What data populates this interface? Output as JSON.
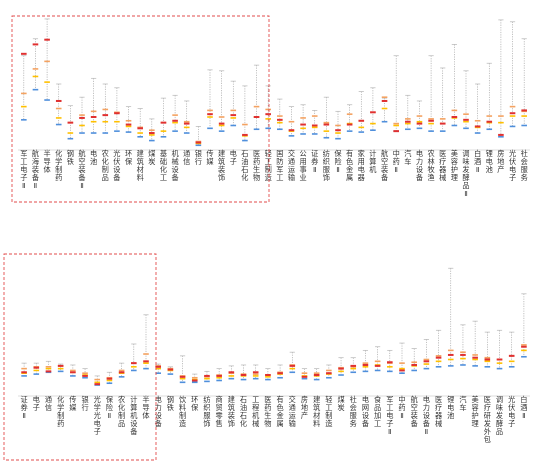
{
  "colors": {
    "p25": "#4f8fdc",
    "median": "#ffc000",
    "p75": "#f4a261",
    "current": "#e03030",
    "range": "#9a9a9a",
    "frame": "#e24b4b"
  },
  "chart_data": [
    {
      "type": "range-marker",
      "title": "",
      "legend": [],
      "y_tick_labels": [],
      "ylim": [
        0,
        140
      ],
      "categories": [
        "军工电子Ⅱ",
        "航海装备Ⅱ",
        "半导体",
        "化学制药",
        "钢铁",
        "航空装备Ⅱ",
        "电池",
        "农化制品",
        "光伏设备",
        "环保",
        "建筑材料",
        "煤炭",
        "基础化工",
        "机械设备",
        "通信",
        "银行",
        "传媒",
        "建筑装饰",
        "电子",
        "石油石化",
        "医药生物",
        "轻工制造",
        "国防军工",
        "交通运输",
        "公用事业",
        "证券Ⅱ",
        "纺织服饰",
        "保险Ⅱ",
        "有色金属",
        "家用电器",
        "计算机",
        "航空装备",
        "中药Ⅱ",
        "汽车",
        "电力设备",
        "农林牧渔",
        "医疗器械",
        "美容护理",
        "调味发酵品Ⅱ",
        "白酒Ⅱ",
        "锂电池",
        "房地产",
        "光伏电子",
        "社会服务"
      ],
      "series": [
        {
          "name": "",
          "key": "max",
          "values": [
            100,
            118,
            139,
            70,
            47,
            56,
            76,
            70,
            66,
            46,
            44,
            33,
            55,
            58,
            52,
            25,
            85,
            84,
            73,
            68,
            90,
            68,
            54,
            46,
            48,
            42,
            56,
            41,
            48,
            62,
            66,
            55,
            100,
            58,
            52,
            100,
            87,
            112,
            84,
            70,
            92,
            138,
            136,
            118
          ]
        },
        {
          "name": "",
          "key": "p75",
          "values": [
            60,
            86,
            94,
            44,
            29,
            37,
            41,
            43,
            40,
            31,
            24,
            21,
            29,
            37,
            30,
            9,
            42,
            35,
            42,
            27,
            46,
            43,
            36,
            30,
            34,
            36,
            29,
            26,
            38,
            31,
            40,
            56,
            28,
            33,
            36,
            33,
            33,
            42,
            38,
            31,
            36,
            36,
            46,
            41
          ]
        },
        {
          "name": "",
          "key": "median",
          "values": [
            46,
            78,
            72,
            34,
            18,
            26,
            30,
            30,
            30,
            25,
            18,
            16,
            20,
            29,
            24,
            7,
            35,
            26,
            34,
            15,
            35,
            33,
            29,
            20,
            23,
            24,
            20,
            18,
            28,
            24,
            28,
            44,
            26,
            28,
            30,
            28,
            28,
            34,
            30,
            24,
            29,
            29,
            36,
            36
          ]
        },
        {
          "name": "",
          "key": "p25",
          "values": [
            32,
            64,
            53,
            27,
            12,
            18,
            18,
            18,
            20,
            19,
            14,
            10,
            14,
            20,
            18,
            5,
            23,
            20,
            26,
            10,
            22,
            23,
            22,
            15,
            17,
            17,
            13,
            12,
            20,
            19,
            21,
            30,
            20,
            22,
            23,
            20,
            20,
            26,
            23,
            18,
            22,
            14,
            25,
            26
          ]
        },
        {
          "name": "",
          "key": "current",
          "values": [
            102,
            112,
            117,
            52,
            29,
            34,
            35,
            37,
            39,
            27,
            23,
            18,
            29,
            31,
            28,
            8,
            38,
            28,
            37,
            16,
            35,
            38,
            32,
            21,
            27,
            26,
            27,
            21,
            27,
            31,
            40,
            52,
            20,
            30,
            28,
            31,
            28,
            35,
            32,
            25,
            30,
            16,
            39,
            42
          ]
        }
      ]
    },
    {
      "type": "range-marker",
      "title": "",
      "legend": [],
      "y_tick_labels": [],
      "ylim": [
        0,
        160
      ],
      "categories": [
        "证券Ⅱ",
        "电子",
        "通信",
        "化学制药",
        "传媒",
        "银行",
        "光学光电子",
        "保险Ⅱ",
        "农化制品",
        "计算机设备",
        "半导体",
        "电力设备",
        "钢铁",
        "饮料制造",
        "环保",
        "纺织服饰",
        "商贸零售",
        "建筑装饰",
        "石油石化",
        "工程机械",
        "医药生物",
        "有色金属",
        "交通运输",
        "房地产",
        "建筑材料",
        "轻工制造",
        "煤炭",
        "社会服务",
        "电网设备",
        "食品加工",
        "军工电子Ⅱ",
        "中药Ⅱ",
        "航空装备",
        "电力设备Ⅱ",
        "医疗器械",
        "锂电池",
        "汽车",
        "美容护理",
        "医疗研发外包",
        "调味发酵品",
        "光伏电子",
        "白酒Ⅱ"
      ],
      "series": [
        {
          "name": "",
          "key": "max",
          "values": [
            36,
            36,
            38,
            35,
            34,
            30,
            22,
            26,
            36,
            57,
            89,
            35,
            32,
            44,
            24,
            27,
            30,
            33,
            34,
            34,
            30,
            34,
            48,
            30,
            30,
            34,
            42,
            42,
            50,
            54,
            50,
            58,
            52,
            62,
            72,
            140,
            78,
            82,
            70,
            72,
            70,
            112
          ]
        },
        {
          "name": "",
          "key": "p75",
          "values": [
            30,
            32,
            32,
            33,
            28,
            25,
            18,
            20,
            28,
            36,
            46,
            33,
            30,
            22,
            20,
            21,
            23,
            25,
            24,
            24,
            23,
            26,
            34,
            25,
            25,
            28,
            31,
            32,
            36,
            38,
            36,
            36,
            37,
            40,
            44,
            50,
            48,
            45,
            42,
            40,
            44,
            56
          ]
        },
        {
          "name": "",
          "key": "median",
          "values": [
            25,
            28,
            30,
            30,
            26,
            23,
            15,
            17,
            25,
            32,
            36,
            30,
            28,
            19,
            18,
            19,
            20,
            22,
            22,
            22,
            21,
            24,
            30,
            22,
            22,
            24,
            27,
            30,
            32,
            34,
            32,
            30,
            33,
            35,
            38,
            40,
            41,
            40,
            38,
            36,
            38,
            50
          ]
        },
        {
          "name": "",
          "key": "p25",
          "values": [
            22,
            24,
            26,
            27,
            22,
            20,
            12,
            14,
            21,
            28,
            30,
            25,
            24,
            15,
            15,
            16,
            17,
            19,
            18,
            19,
            18,
            20,
            26,
            19,
            18,
            20,
            23,
            26,
            27,
            28,
            27,
            25,
            28,
            30,
            32,
            33,
            34,
            33,
            32,
            30,
            32,
            43
          ]
        },
        {
          "name": "",
          "key": "current",
          "values": [
            26,
            31,
            27,
            33,
            26,
            22,
            13,
            19,
            26,
            36,
            38,
            32,
            29,
            21,
            17,
            22,
            22,
            26,
            23,
            26,
            23,
            25,
            33,
            21,
            23,
            25,
            30,
            33,
            34,
            33,
            37,
            28,
            34,
            38,
            42,
            45,
            45,
            42,
            40,
            40,
            44,
            54
          ]
        }
      ]
    }
  ]
}
